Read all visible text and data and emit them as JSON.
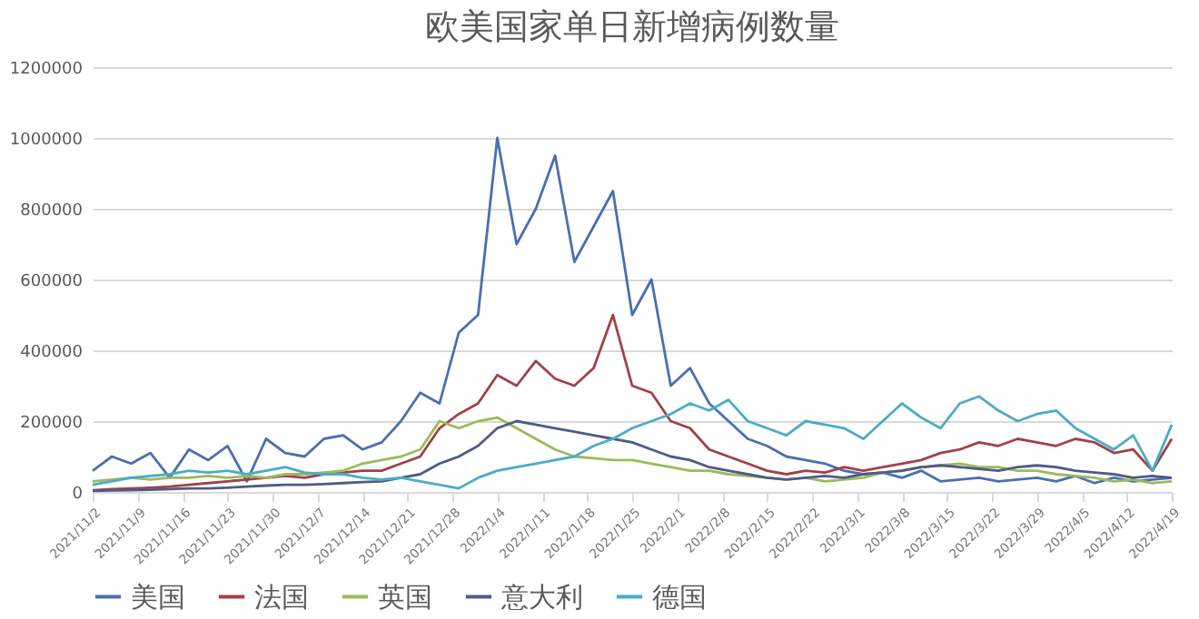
{
  "chart_data": {
    "type": "line",
    "title": "欧美国家单日新增病例数量",
    "x": [
      "2021-11-02",
      "2021-11-05",
      "2021-11-08",
      "2021-11-11",
      "2021-11-14",
      "2021-11-17",
      "2021-11-20",
      "2021-11-23",
      "2021-11-26",
      "2021-11-29",
      "2021-12-02",
      "2021-12-05",
      "2021-12-08",
      "2021-12-11",
      "2021-12-14",
      "2021-12-17",
      "2021-12-20",
      "2021-12-23",
      "2021-12-26",
      "2021-12-29",
      "2022-01-01",
      "2022-01-04",
      "2022-01-07",
      "2022-01-10",
      "2022-01-13",
      "2022-01-16",
      "2022-01-19",
      "2022-01-22",
      "2022-01-25",
      "2022-01-28",
      "2022-01-31",
      "2022-02-03",
      "2022-02-06",
      "2022-02-09",
      "2022-02-12",
      "2022-02-15",
      "2022-02-18",
      "2022-02-21",
      "2022-02-24",
      "2022-02-27",
      "2022-03-02",
      "2022-03-05",
      "2022-03-08",
      "2022-03-11",
      "2022-03-14",
      "2022-03-17",
      "2022-03-20",
      "2022-03-23",
      "2022-03-26",
      "2022-03-29",
      "2022-04-01",
      "2022-04-04",
      "2022-04-07",
      "2022-04-10",
      "2022-04-13",
      "2022-04-16",
      "2022-04-19"
    ],
    "xlim": [
      "2021-11-02",
      "2022-04-19"
    ],
    "xticks": [
      {
        "value": "2021-11-02",
        "label": "2021/11/2"
      },
      {
        "value": "2021-11-09",
        "label": "2021/11/9"
      },
      {
        "value": "2021-11-16",
        "label": "2021/11/16"
      },
      {
        "value": "2021-11-23",
        "label": "2021/11/23"
      },
      {
        "value": "2021-11-30",
        "label": "2021/11/30"
      },
      {
        "value": "2021-12-07",
        "label": "2021/12/7"
      },
      {
        "value": "2021-12-14",
        "label": "2021/12/14"
      },
      {
        "value": "2021-12-21",
        "label": "2021/12/21"
      },
      {
        "value": "2021-12-28",
        "label": "2021/12/28"
      },
      {
        "value": "2022-01-04",
        "label": "2022/1/4"
      },
      {
        "value": "2022-01-11",
        "label": "2022/1/11"
      },
      {
        "value": "2022-01-18",
        "label": "2022/1/18"
      },
      {
        "value": "2022-01-25",
        "label": "2022/1/25"
      },
      {
        "value": "2022-02-01",
        "label": "2022/2/1"
      },
      {
        "value": "2022-02-08",
        "label": "2022/2/8"
      },
      {
        "value": "2022-02-15",
        "label": "2022/2/15"
      },
      {
        "value": "2022-02-22",
        "label": "2022/2/22"
      },
      {
        "value": "2022-03-01",
        "label": "2022/3/1"
      },
      {
        "value": "2022-03-08",
        "label": "2022/3/8"
      },
      {
        "value": "2022-03-15",
        "label": "2022/3/15"
      },
      {
        "value": "2022-03-22",
        "label": "2022/3/22"
      },
      {
        "value": "2022-03-29",
        "label": "2022/3/29"
      },
      {
        "value": "2022-04-05",
        "label": "2022/4/5"
      },
      {
        "value": "2022-04-12",
        "label": "2022/4/12"
      },
      {
        "value": "2022-04-19",
        "label": "2022/4/19"
      }
    ],
    "ylim": [
      0,
      1200000
    ],
    "yticks": [
      0,
      200000,
      400000,
      600000,
      800000,
      1000000,
      1200000
    ],
    "grid": "y",
    "legend": "bottom",
    "series": [
      {
        "name": "美国",
        "color": "#4a6fb0",
        "values": [
          60000,
          100000,
          80000,
          110000,
          40000,
          120000,
          90000,
          130000,
          30000,
          150000,
          110000,
          100000,
          150000,
          160000,
          120000,
          140000,
          200000,
          280000,
          250000,
          450000,
          500000,
          1000000,
          700000,
          800000,
          950000,
          650000,
          750000,
          850000,
          500000,
          600000,
          300000,
          350000,
          250000,
          200000,
          150000,
          130000,
          100000,
          90000,
          80000,
          60000,
          50000,
          55000,
          40000,
          60000,
          30000,
          35000,
          40000,
          30000,
          35000,
          40000,
          30000,
          45000,
          25000,
          40000,
          30000,
          35000,
          40000
        ]
      },
      {
        "name": "法国",
        "color": "#a2404a",
        "values": [
          5000,
          8000,
          10000,
          12000,
          15000,
          20000,
          25000,
          30000,
          35000,
          40000,
          45000,
          40000,
          50000,
          55000,
          60000,
          60000,
          80000,
          100000,
          180000,
          220000,
          250000,
          330000,
          300000,
          370000,
          320000,
          300000,
          350000,
          500000,
          300000,
          280000,
          200000,
          180000,
          120000,
          100000,
          80000,
          60000,
          50000,
          60000,
          55000,
          70000,
          60000,
          70000,
          80000,
          90000,
          110000,
          120000,
          140000,
          130000,
          150000,
          140000,
          130000,
          150000,
          140000,
          110000,
          120000,
          60000,
          150000
        ]
      },
      {
        "name": "英国",
        "color": "#9bbb59",
        "values": [
          30000,
          35000,
          40000,
          35000,
          40000,
          40000,
          45000,
          40000,
          45000,
          40000,
          50000,
          50000,
          55000,
          60000,
          80000,
          90000,
          100000,
          120000,
          200000,
          180000,
          200000,
          210000,
          180000,
          150000,
          120000,
          100000,
          95000,
          90000,
          90000,
          80000,
          70000,
          60000,
          60000,
          50000,
          45000,
          40000,
          35000,
          40000,
          30000,
          35000,
          40000,
          55000,
          60000,
          70000,
          75000,
          80000,
          70000,
          70000,
          60000,
          60000,
          50000,
          45000,
          40000,
          30000,
          35000,
          25000,
          30000
        ]
      },
      {
        "name": "意大利",
        "color": "#4f5b85",
        "values": [
          3000,
          4000,
          5000,
          6000,
          8000,
          10000,
          10000,
          12000,
          15000,
          18000,
          20000,
          20000,
          22000,
          25000,
          28000,
          30000,
          40000,
          50000,
          80000,
          100000,
          130000,
          180000,
          200000,
          190000,
          180000,
          170000,
          160000,
          150000,
          140000,
          120000,
          100000,
          90000,
          70000,
          60000,
          50000,
          40000,
          35000,
          40000,
          45000,
          40000,
          50000,
          55000,
          60000,
          70000,
          75000,
          70000,
          65000,
          60000,
          70000,
          75000,
          70000,
          60000,
          55000,
          50000,
          40000,
          45000,
          40000
        ]
      },
      {
        "name": "德国",
        "color": "#4bacc6",
        "values": [
          20000,
          30000,
          40000,
          45000,
          50000,
          60000,
          55000,
          60000,
          50000,
          60000,
          70000,
          55000,
          50000,
          50000,
          40000,
          35000,
          40000,
          30000,
          20000,
          10000,
          40000,
          60000,
          70000,
          80000,
          90000,
          100000,
          130000,
          150000,
          180000,
          200000,
          220000,
          250000,
          230000,
          260000,
          200000,
          180000,
          160000,
          200000,
          190000,
          180000,
          150000,
          200000,
          250000,
          210000,
          180000,
          250000,
          270000,
          230000,
          200000,
          220000,
          230000,
          180000,
          150000,
          120000,
          160000,
          60000,
          190000
        ]
      }
    ]
  }
}
